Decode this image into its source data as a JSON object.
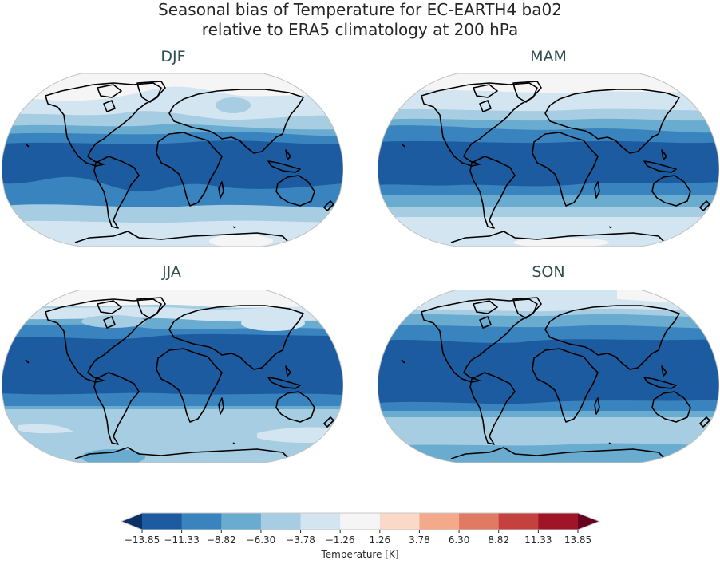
{
  "figure": {
    "title_line1": "Seasonal bias of Temperature for EC-EARTH4 ba02",
    "title_line2": "relative to ERA5 climatology at 200 hPa"
  },
  "panels": [
    {
      "season": "DJF"
    },
    {
      "season": "MAM"
    },
    {
      "season": "JJA"
    },
    {
      "season": "SON"
    }
  ],
  "colorbar": {
    "label": "Temperature [K]",
    "ticks": [
      "−13.85",
      "−11.33",
      "−8.82",
      "−6.30",
      "−3.78",
      "−1.26",
      "1.26",
      "3.78",
      "6.30",
      "8.82",
      "11.33",
      "13.85"
    ],
    "colors": [
      "#1c5b9f",
      "#3984bf",
      "#6aacd0",
      "#a6cde2",
      "#d3e5f0",
      "#f5f5f5",
      "#fbd9c8",
      "#f4a98a",
      "#e07a63",
      "#c5413d",
      "#a01428"
    ],
    "under_color": "#0b3064",
    "over_color": "#670021",
    "extend": "both"
  },
  "chart_data": {
    "type": "heatmap",
    "title": "Seasonal bias of Temperature for EC-EARTH4 ba02 relative to ERA5 climatology at 200 hPa",
    "subplots": [
      "DJF",
      "MAM",
      "JJA",
      "SON"
    ],
    "projection": "Robinson (global)",
    "variable": "Temperature bias",
    "units": "K",
    "levels": [
      -13.85,
      -11.33,
      -8.82,
      -6.3,
      -3.78,
      -1.26,
      1.26,
      3.78,
      6.3,
      8.82,
      11.33,
      13.85
    ],
    "colormap": "RdBu_r",
    "colorbar_label": "Temperature [K]",
    "colorbar_position": "bottom",
    "summary": {
      "DJF": "Tropics strongly cold-biased (-13.85 to -11.33 K), tapering to -3.78..-1.26 K near poles; weaker bias over N. Pacific/Arctic",
      "MAM": "Broad tropical cold bias (-13.85 to -11.33 K); mid-latitudes -8.82..-6.30 K; poles -3.78..-1.26 K",
      "JJA": "Tropical cold bias shifted north (-13.85 to -11.33 K); Southern Hemisphere extratropics -6.30..-3.78 K",
      "SON": "Tropical cold bias (-13.85 to -11.33 K); mid-latitudes -8.82..-3.78 K; Antarctic -8.82..-6.30 K"
    }
  }
}
